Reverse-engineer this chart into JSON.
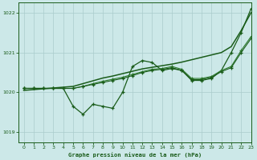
{
  "title": "Graphe pression niveau de la mer (hPa)",
  "bg_color": "#cce8e8",
  "grid_color": "#aacccc",
  "line_color_dark": "#1a5c1a",
  "line_color_med": "#2d7a2d",
  "xlim": [
    -0.5,
    23
  ],
  "ylim": [
    1018.75,
    1022.25
  ],
  "yticks": [
    1019,
    1020,
    1021,
    1022
  ],
  "xticks": [
    0,
    1,
    2,
    3,
    4,
    5,
    6,
    7,
    8,
    9,
    10,
    11,
    12,
    13,
    14,
    15,
    16,
    17,
    18,
    19,
    20,
    21,
    22,
    23
  ],
  "series1_x": [
    0,
    1,
    2,
    3,
    4,
    5,
    6,
    7,
    8,
    9,
    10,
    11,
    12,
    13,
    14,
    15,
    16,
    17,
    18,
    19,
    20,
    21,
    22,
    23
  ],
  "series1_y": [
    1020.1,
    1020.1,
    1020.1,
    1020.1,
    1020.1,
    1019.65,
    1019.45,
    1019.7,
    1019.65,
    1019.6,
    1020.0,
    1020.65,
    1020.8,
    1020.75,
    1020.55,
    1020.6,
    1020.55,
    1020.3,
    1020.3,
    1020.35,
    1020.55,
    1021.0,
    1021.5,
    1022.1
  ],
  "series2_x": [
    0,
    1,
    2,
    3,
    4,
    5,
    6,
    7,
    8,
    9,
    10,
    11,
    12,
    13,
    14,
    15,
    16,
    17,
    18,
    19,
    20,
    21,
    22,
    23
  ],
  "series2_y": [
    1020.05,
    1020.07,
    1020.09,
    1020.11,
    1020.13,
    1020.15,
    1020.22,
    1020.29,
    1020.36,
    1020.41,
    1020.47,
    1020.53,
    1020.59,
    1020.63,
    1020.67,
    1020.71,
    1020.76,
    1020.82,
    1020.88,
    1020.94,
    1021.0,
    1021.15,
    1021.55,
    1022.0
  ],
  "series3_x": [
    0,
    1,
    2,
    3,
    4,
    5,
    6,
    7,
    8,
    9,
    10,
    11,
    12,
    13,
    14,
    15,
    16,
    17,
    18,
    19,
    20,
    21,
    22,
    23
  ],
  "series3_y": [
    1020.1,
    1020.1,
    1020.1,
    1020.1,
    1020.1,
    1020.1,
    1020.15,
    1020.22,
    1020.28,
    1020.33,
    1020.38,
    1020.45,
    1020.52,
    1020.58,
    1020.6,
    1020.65,
    1020.58,
    1020.35,
    1020.35,
    1020.4,
    1020.55,
    1020.65,
    1021.05,
    1021.4
  ],
  "series4_x": [
    0,
    1,
    2,
    3,
    4,
    5,
    6,
    7,
    8,
    9,
    10,
    11,
    12,
    13,
    14,
    15,
    16,
    17,
    18,
    19,
    20,
    21,
    22,
    23
  ],
  "series4_y": [
    1020.1,
    1020.1,
    1020.1,
    1020.1,
    1020.1,
    1020.1,
    1020.15,
    1020.2,
    1020.25,
    1020.3,
    1020.35,
    1020.42,
    1020.5,
    1020.55,
    1020.58,
    1020.62,
    1020.55,
    1020.32,
    1020.32,
    1020.38,
    1020.52,
    1020.62,
    1021.0,
    1021.35
  ]
}
